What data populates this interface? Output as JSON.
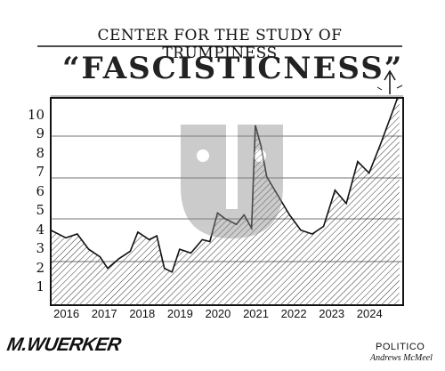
{
  "cartoon": {
    "heading": "CENTER FOR THE STUDY OF TRUMPINESS",
    "title": "“FASCISTICNESS”",
    "signature": "M.WUERKER",
    "credit_line1": "POLITICO",
    "credit_line2": "Andrews McMeel"
  },
  "chart_data": {
    "type": "area",
    "title": "“FASCISTICNESS”",
    "ylim": [
      0,
      11
    ],
    "y_ticks": [
      "1",
      "2",
      "3",
      "4",
      "5",
      "6",
      "7",
      "8",
      "9",
      "10"
    ],
    "x_ticks": [
      "2016",
      "2017",
      "2018",
      "2019",
      "2020",
      "2021",
      "2022",
      "2023",
      "2024"
    ],
    "grid": true,
    "series": [
      {
        "x": [
          2015.6,
          2016.0,
          2016.3,
          2016.6,
          2016.9,
          2017.1,
          2017.4,
          2017.7,
          2017.9,
          2018.2,
          2018.4,
          2018.6,
          2018.8,
          2019.0,
          2019.3,
          2019.6,
          2019.8,
          2020.0,
          2020.2,
          2020.5,
          2020.7,
          2020.9,
          2021.0,
          2021.15,
          2021.3,
          2021.6,
          2021.9,
          2022.2,
          2022.5,
          2022.8,
          2023.1,
          2023.4,
          2023.7,
          2024.0,
          2024.3,
          2024.6,
          2024.8
        ],
        "values": [
          4.0,
          3.6,
          3.8,
          3.0,
          2.6,
          2.0,
          2.5,
          2.9,
          3.9,
          3.5,
          3.7,
          2.0,
          1.8,
          3.0,
          2.8,
          3.5,
          3.4,
          4.9,
          4.6,
          4.3,
          4.8,
          4.1,
          9.5,
          8.4,
          6.8,
          5.8,
          4.8,
          4.0,
          3.8,
          4.2,
          6.1,
          5.4,
          7.6,
          7.0,
          8.5,
          10.1,
          11.2
        ]
      }
    ]
  },
  "icons": {
    "watermark": "politico-logo-icon",
    "arrow": "up-arrow-icon"
  }
}
